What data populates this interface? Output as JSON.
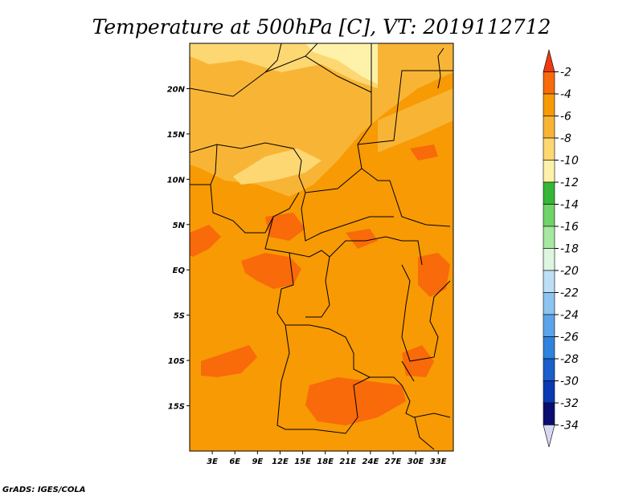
{
  "title": "Temperature at 500hPa [C], VT: 2019112712",
  "credit": "GrADS: IGES/COLA",
  "map": {
    "lon_range": [
      0,
      35
    ],
    "lat_range": [
      -20,
      25
    ],
    "lon_ticks": [
      {
        "value": 3,
        "label": "3E"
      },
      {
        "value": 6,
        "label": "6E"
      },
      {
        "value": 9,
        "label": "9E"
      },
      {
        "value": 12,
        "label": "12E"
      },
      {
        "value": 15,
        "label": "15E"
      },
      {
        "value": 18,
        "label": "18E"
      },
      {
        "value": 21,
        "label": "21E"
      },
      {
        "value": 24,
        "label": "24E"
      },
      {
        "value": 27,
        "label": "27E"
      },
      {
        "value": 30,
        "label": "30E"
      },
      {
        "value": 33,
        "label": "33E"
      }
    ],
    "lat_ticks": [
      {
        "value": 20,
        "label": "20N"
      },
      {
        "value": 15,
        "label": "15N"
      },
      {
        "value": 10,
        "label": "10N"
      },
      {
        "value": 5,
        "label": "5N"
      },
      {
        "value": 0,
        "label": "EQ"
      },
      {
        "value": -5,
        "label": "5S"
      },
      {
        "value": -10,
        "label": "10S"
      },
      {
        "value": -15,
        "label": "15S"
      }
    ]
  },
  "colorbar": {
    "labels": [
      "-2",
      "-4",
      "-6",
      "-8",
      "-10",
      "-12",
      "-14",
      "-16",
      "-18",
      "-20",
      "-22",
      "-24",
      "-26",
      "-28",
      "-30",
      "-32",
      "-34"
    ],
    "colors": [
      "#ee3a12",
      "#f86a0a",
      "#f79a04",
      "#f8b535",
      "#fdd772",
      "#fef2aa",
      "#35b638",
      "#6ed468",
      "#a6e89f",
      "#def5df",
      "#bcdff7",
      "#8cc4f1",
      "#5aa5e9",
      "#2e83dd",
      "#1b5ecc",
      "#0a3ab3",
      "#0a0e70",
      "#d8d8f2"
    ]
  },
  "fill_colors": {
    "base": "#f79a04",
    "light": "#f8b535",
    "lighter": "#fdd772",
    "lightest": "#fef2aa",
    "dark": "#f86a0a"
  }
}
